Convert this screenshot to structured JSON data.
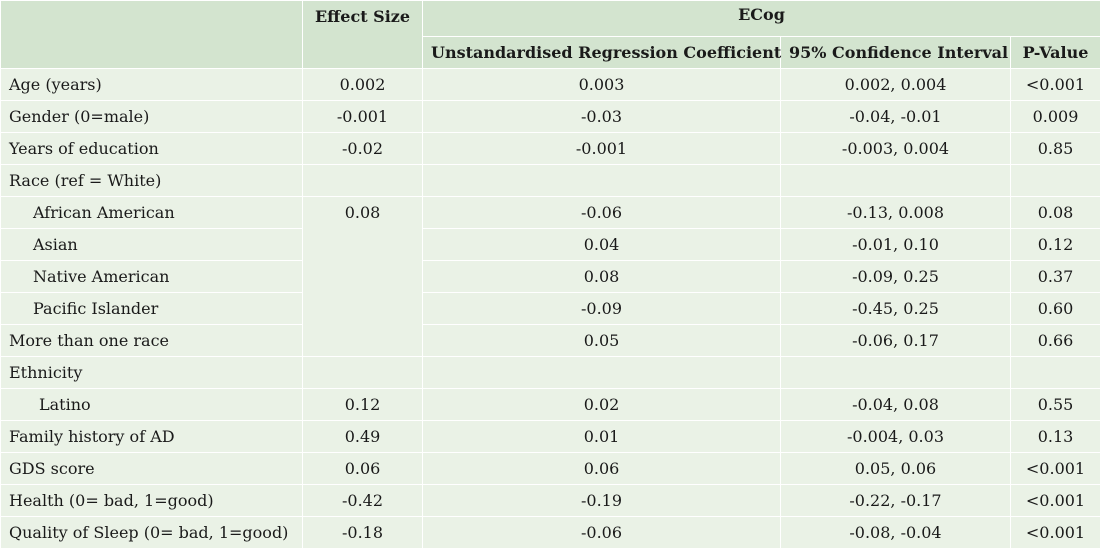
{
  "header": {
    "effect_size": "Effect Size",
    "ecog": "ECog",
    "coef": "Unstandardised Regression Coefficient",
    "ci": "95% Confidence Interval",
    "pval": "P-Value"
  },
  "rows": [
    {
      "label": "Age (years)",
      "effect": "0.002",
      "coef": "0.003",
      "ci": "0.002, 0.004",
      "p": "<0.001"
    },
    {
      "label": "Gender (0=male)",
      "effect": "-0.001",
      "coef": "-0.03",
      "ci": "-0.04, -0.01",
      "p": "0.009"
    },
    {
      "label": "Years of education",
      "effect": "-0.02",
      "coef": "-0.001",
      "ci": "-0.003, 0.004",
      "p": "0.85"
    },
    {
      "label": "Race (ref = White)",
      "effect": "",
      "coef": "",
      "ci": "",
      "p": ""
    },
    {
      "label": "African American",
      "effect": "0.08",
      "coef": "-0.06",
      "ci": "-0.13, 0.008",
      "p": "0.08"
    },
    {
      "label": "Asian",
      "effect": "",
      "coef": "0.04",
      "ci": "-0.01, 0.10",
      "p": "0.12"
    },
    {
      "label": "Native American",
      "effect": "",
      "coef": "0.08",
      "ci": "-0.09, 0.25",
      "p": "0.37"
    },
    {
      "label": "Pacific Islander",
      "effect": "",
      "coef": "-0.09",
      "ci": "-0.45, 0.25",
      "p": "0.60"
    },
    {
      "label": "More than one race",
      "effect": "",
      "coef": "0.05",
      "ci": "-0.06, 0.17",
      "p": "0.66"
    },
    {
      "label": "Ethnicity",
      "effect": "",
      "coef": "",
      "ci": "",
      "p": ""
    },
    {
      "label": "Latino",
      "effect": "0.12",
      "coef": "0.02",
      "ci": "-0.04, 0.08",
      "p": "0.55"
    },
    {
      "label": "Family history of AD",
      "effect": "0.49",
      "coef": "0.01",
      "ci": "-0.004, 0.03",
      "p": "0.13"
    },
    {
      "label": "GDS score",
      "effect": "0.06",
      "coef": "0.06",
      "ci": "0.05, 0.06",
      "p": "<0.001"
    },
    {
      "label": "Health (0= bad, 1=good)",
      "effect": "-0.42",
      "coef": "-0.19",
      "ci": "-0.22, -0.17",
      "p": "<0.001"
    },
    {
      "label": "Quality of Sleep (0= bad, 1=good)",
      "effect": "-0.18",
      "coef": "-0.06",
      "ci": "-0.08, -0.04",
      "p": "<0.001"
    }
  ],
  "colors": {
    "header_bg": "#d3e4cf",
    "body_bg": "#eaf2e6",
    "border": "#ffffff"
  }
}
